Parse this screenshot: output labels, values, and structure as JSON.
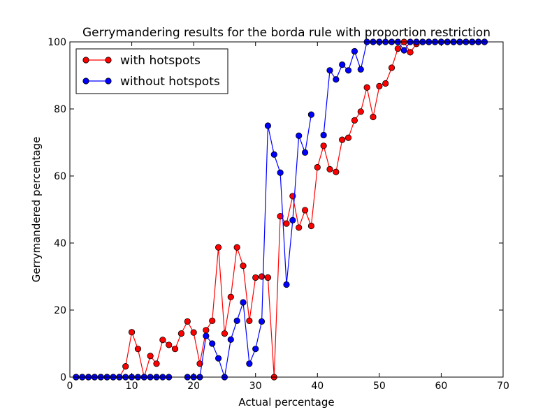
{
  "chart_data": {
    "type": "line",
    "title": "Gerrymandering results for the borda rule with proportion restriction",
    "xlabel": "Actual percentage",
    "ylabel": "Gerrymandered percentage",
    "xlim": [
      0,
      70
    ],
    "ylim": [
      0,
      100
    ],
    "xticks": [
      0,
      10,
      20,
      30,
      40,
      50,
      60,
      70
    ],
    "yticks": [
      0,
      20,
      40,
      60,
      80,
      100
    ],
    "grid": false,
    "legend_position": "top-left",
    "series": [
      {
        "name": "with hotspots",
        "color": "#ff0000",
        "marker": "circle",
        "x": [
          1,
          2,
          3,
          4,
          5,
          6,
          7,
          8,
          9,
          10,
          11,
          12,
          13,
          14,
          15,
          16,
          17,
          18,
          19,
          20,
          21,
          22,
          23,
          24,
          25,
          26,
          27,
          28,
          29,
          30,
          31,
          32,
          33,
          34,
          35,
          36,
          37,
          38,
          39,
          40,
          41,
          42,
          43,
          44,
          45,
          46,
          47,
          48,
          49,
          50,
          51,
          52,
          53,
          54,
          55,
          56,
          57,
          58,
          59,
          60,
          61,
          62,
          63,
          64,
          65,
          66,
          67
        ],
        "y": [
          0,
          0,
          0,
          0,
          0,
          0,
          0,
          0,
          3.2,
          13.4,
          8.4,
          0,
          6.3,
          4,
          11.1,
          9.6,
          8.4,
          13,
          16.6,
          13.3,
          4,
          14,
          16.8,
          38.7,
          13,
          23.9,
          38.7,
          33.2,
          16.8,
          29.7,
          30,
          29.7,
          0,
          48,
          45.8,
          54,
          44.6,
          49.8,
          45.1,
          62.6,
          69,
          62,
          61.2,
          70.8,
          71.4,
          76.6,
          79.2,
          86.4,
          77.6,
          86.8,
          87.6,
          92.3,
          98,
          100,
          96.9,
          99.4,
          100,
          100,
          100,
          100,
          100,
          100,
          100,
          100,
          100,
          100,
          100
        ]
      },
      {
        "name": "without hotspots",
        "color": "#0000ff",
        "marker": "circle",
        "x": [
          1,
          2,
          3,
          4,
          5,
          6,
          7,
          8,
          9,
          10,
          11,
          12,
          13,
          14,
          15,
          16,
          17,
          18,
          19,
          20,
          21,
          22,
          23,
          24,
          25,
          26,
          27,
          28,
          29,
          30,
          31,
          32,
          33,
          34,
          35,
          36,
          37,
          38,
          39,
          40,
          41,
          42,
          43,
          44,
          45,
          46,
          47,
          48,
          49,
          50,
          51,
          52,
          53,
          54,
          55,
          56,
          57,
          58,
          59,
          60,
          61,
          62,
          63,
          64,
          65,
          66,
          67
        ],
        "y": [
          0,
          0,
          0,
          0,
          0,
          0,
          0,
          0,
          0,
          0,
          0,
          0,
          0,
          0,
          0,
          0,
          null,
          null,
          0,
          0,
          0,
          12.3,
          10,
          5.6,
          0,
          11.2,
          16.8,
          22.3,
          4,
          8.4,
          16.6,
          75,
          66.4,
          61,
          27.6,
          46.8,
          72,
          67,
          78.3,
          null,
          72.2,
          91.5,
          88.8,
          93.2,
          91.5,
          97.2,
          91.8,
          100,
          100,
          100,
          100,
          100,
          100,
          97.5,
          100,
          100,
          100,
          100,
          100,
          100,
          100,
          100,
          100,
          100,
          100,
          100,
          100
        ]
      }
    ]
  }
}
